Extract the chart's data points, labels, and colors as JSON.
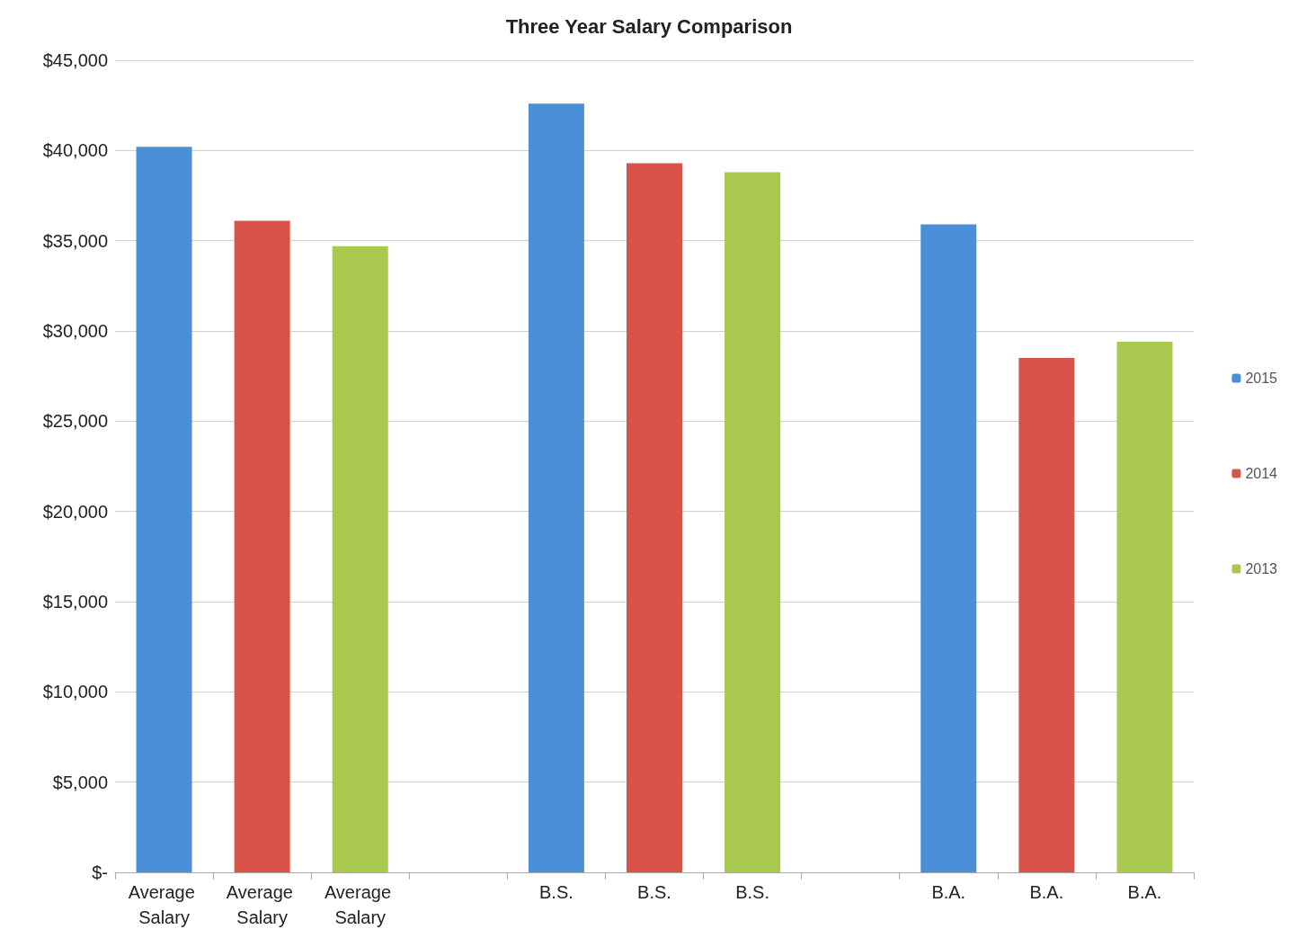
{
  "chart_data": {
    "type": "bar",
    "title": "Three Year Salary Comparison",
    "categories": [
      "Average Salary",
      "Average Salary",
      "Average Salary",
      null,
      "B.S.",
      "B.S.",
      "B.S.",
      null,
      "B.A.",
      "B.A.",
      "B.A."
    ],
    "series": [
      {
        "name": "2015",
        "color": "#4a8fd8",
        "values": [
          40200,
          null,
          null,
          null,
          42600,
          null,
          null,
          null,
          35900,
          null,
          null
        ]
      },
      {
        "name": "2014",
        "color": "#d9534a",
        "values": [
          null,
          36100,
          null,
          null,
          null,
          39300,
          null,
          null,
          null,
          28500,
          null
        ]
      },
      {
        "name": "2013",
        "color": "#a8c84e",
        "values": [
          null,
          null,
          34700,
          null,
          null,
          null,
          38800,
          null,
          null,
          null,
          29400
        ]
      }
    ],
    "ylim": [
      0,
      45000
    ],
    "yticks": [
      {
        "value": 0,
        "label": "$-"
      },
      {
        "value": 5000,
        "label": "$5,000"
      },
      {
        "value": 10000,
        "label": "$10,000"
      },
      {
        "value": 15000,
        "label": "$15,000"
      },
      {
        "value": 20000,
        "label": "$20,000"
      },
      {
        "value": 25000,
        "label": "$25,000"
      },
      {
        "value": 30000,
        "label": "$30,000"
      },
      {
        "value": 35000,
        "label": "$35,000"
      },
      {
        "value": 40000,
        "label": "$40,000"
      },
      {
        "value": 45000,
        "label": "$45,000"
      }
    ],
    "grid": "y",
    "legend": "right"
  }
}
